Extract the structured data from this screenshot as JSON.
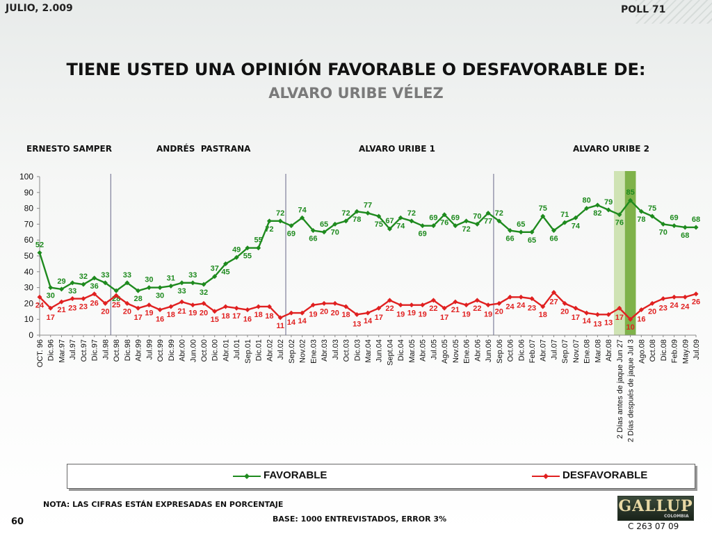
{
  "header": {
    "date": "JULIO, 2.009",
    "poll": "POLL 71"
  },
  "chart_data": {
    "type": "line",
    "title": "TIENE USTED UNA OPINIÓN FAVORABLE O DESFAVORABLE DE:",
    "subtitle": "ALVARO URIBE VÉLEZ",
    "ylim": [
      0,
      100
    ],
    "yticks": [
      0,
      10,
      20,
      30,
      40,
      50,
      60,
      70,
      80,
      90,
      100
    ],
    "grid": false,
    "legend_position": "bottom",
    "categories": [
      "OCT. 96",
      "Dic.96",
      "Mar.97",
      "Jul.97",
      "Oct.97",
      "Dic.97",
      "Jul.98",
      "Oct.98",
      "Dic.98",
      "Abr.99",
      "Jul.99",
      "Oct.99",
      "Dic.99",
      "Abr.00",
      "Jun.00",
      "Oct.00",
      "Dic.00",
      "Abr.01",
      "Jul.01",
      "Sep.01",
      "Dic.01",
      "Abr.02",
      "Jul.02",
      "Sep.02",
      "Nov.02",
      "Ene.03",
      "Abr.03",
      "Jul.03",
      "Oct.03",
      "Dic.03",
      "Mar.04",
      "Jun.04",
      "Sept.04",
      "Dic.04",
      "Mar.05",
      "Abr.05",
      "Jul.05",
      "Ago.05",
      "Nov.05",
      "Ene.06",
      "Abr.06",
      "Jun.06",
      "Sep.06",
      "Oct.06",
      "Dic.06",
      "Feb.07",
      "Abr.07",
      "Jul.07",
      "Sep.07",
      "Nov.07",
      "Ene.08",
      "Mar.08",
      "Abr.08",
      "2 Días antes de jaque Jun 27",
      "2 Días después de jaque Jul 3",
      "Ago.08",
      "Oct.08",
      "Dic.08",
      "Feb.09",
      "May.09",
      "Jul.09"
    ],
    "series": [
      {
        "name": "FAVORABLE",
        "color": "#1e8a1e",
        "values": [
          52,
          30,
          29,
          33,
          32,
          36,
          33,
          28,
          33,
          28,
          30,
          30,
          31,
          33,
          33,
          32,
          37,
          45,
          49,
          55,
          55,
          72,
          72,
          69,
          74,
          66,
          65,
          70,
          72,
          78,
          77,
          75,
          67,
          74,
          72,
          69,
          69,
          76,
          69,
          72,
          70,
          77,
          72,
          66,
          65,
          65,
          75,
          66,
          71,
          74,
          80,
          82,
          79,
          76,
          85,
          78,
          75,
          70,
          69,
          68,
          68
        ]
      },
      {
        "name": "DESFAVORABLE",
        "color": "#e02020",
        "values": [
          24,
          17,
          21,
          23,
          23,
          26,
          20,
          25,
          20,
          17,
          19,
          16,
          18,
          21,
          19,
          20,
          15,
          18,
          17,
          16,
          18,
          18,
          11,
          14,
          14,
          19,
          20,
          20,
          18,
          13,
          14,
          17,
          22,
          19,
          19,
          19,
          22,
          17,
          21,
          19,
          22,
          19,
          20,
          24,
          24,
          23,
          18,
          27,
          20,
          17,
          14,
          13,
          13,
          17,
          10,
          16,
          20,
          23,
          24,
          24,
          26
        ]
      }
    ],
    "periods": [
      {
        "label": "ERNESTO SAMPER"
      },
      {
        "label": "ANDRÉS  PASTRANA"
      },
      {
        "label": "ALVARO URIBE 1"
      },
      {
        "label": "ALVARO URIBE 2"
      }
    ],
    "period_dividers_after": [
      6,
      22,
      41
    ],
    "highlight_categories": [
      53,
      54
    ],
    "highlight_colors": [
      "#cfe3b4",
      "#7fb24a"
    ]
  },
  "legend": {
    "favorable": "FAVORABLE",
    "desfavorable": "DESFAVORABLE"
  },
  "footer": {
    "nota": "NOTA: LAS CIFRAS ESTÁN EXPRESADAS EN PORCENTAJE",
    "page": "60",
    "base": "BASE: 1000 ENTREVISTADOS, ERROR 3%",
    "logo_text": "GALLUP",
    "logo_sub": "COLOMBIA",
    "code": "C 263 07 09"
  }
}
